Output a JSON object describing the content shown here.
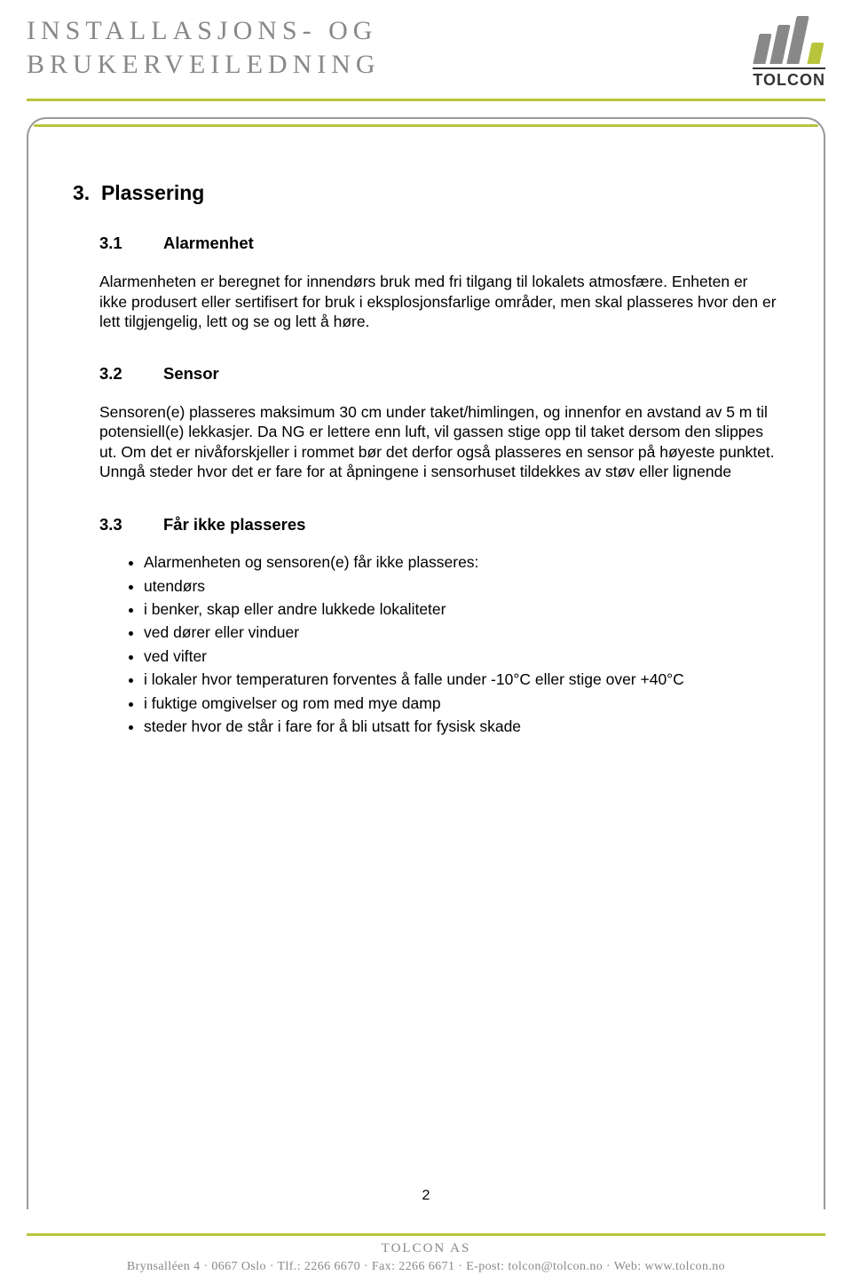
{
  "header": {
    "title_line1": "INSTALLASJONS- OG",
    "title_line2": "BRUKERVEILEDNING",
    "brand": "TOLCON"
  },
  "colors": {
    "accent": "#b8c43c",
    "muted_text": "#888888",
    "body_text": "#000000",
    "frame_border": "#999999"
  },
  "sections": {
    "s3": {
      "number": "3.",
      "title": "Plassering",
      "sub1": {
        "number": "3.1",
        "title": "Alarmenhet",
        "para": "Alarmenheten er beregnet for innendørs bruk med fri tilgang til lokalets atmosfære. Enheten er ikke produsert eller sertifisert for bruk i eksplosjonsfarlige områder, men skal plasseres hvor den er lett tilgjengelig, lett og se og lett å høre."
      },
      "sub2": {
        "number": "3.2",
        "title": "Sensor",
        "para": "Sensoren(e) plasseres maksimum 30 cm under taket/himlingen, og innenfor en avstand av 5 m til potensiell(e) lekkasjer. Da NG er lettere enn luft, vil gassen stige opp til taket dersom den slippes ut. Om det er nivåforskjeller i rommet bør det derfor også plasseres en sensor på høyeste punktet. Unngå steder hvor det er fare for at åpningene i sensorhuset tildekkes av støv eller lignende"
      },
      "sub3": {
        "number": "3.3",
        "title": "Får ikke plasseres",
        "bullets": [
          " Alarmenheten og sensoren(e) får ikke plasseres:",
          "utendørs",
          "i benker, skap eller andre lukkede lokaliteter",
          "ved dører eller vinduer",
          "ved vifter",
          "i lokaler hvor temperaturen forventes å falle under -10°C eller stige over +40°C",
          "i fuktige omgivelser og rom med mye damp",
          "steder hvor de står i fare for å bli utsatt for fysisk skade"
        ]
      }
    }
  },
  "page_number": "2",
  "footer": {
    "company": "TOLCON AS",
    "contact": "Brynsalléen 4 · 0667 Oslo · Tlf.: 2266 6670 · Fax: 2266 6671 · E-post: tolcon@tolcon.no · Web: www.tolcon.no"
  }
}
